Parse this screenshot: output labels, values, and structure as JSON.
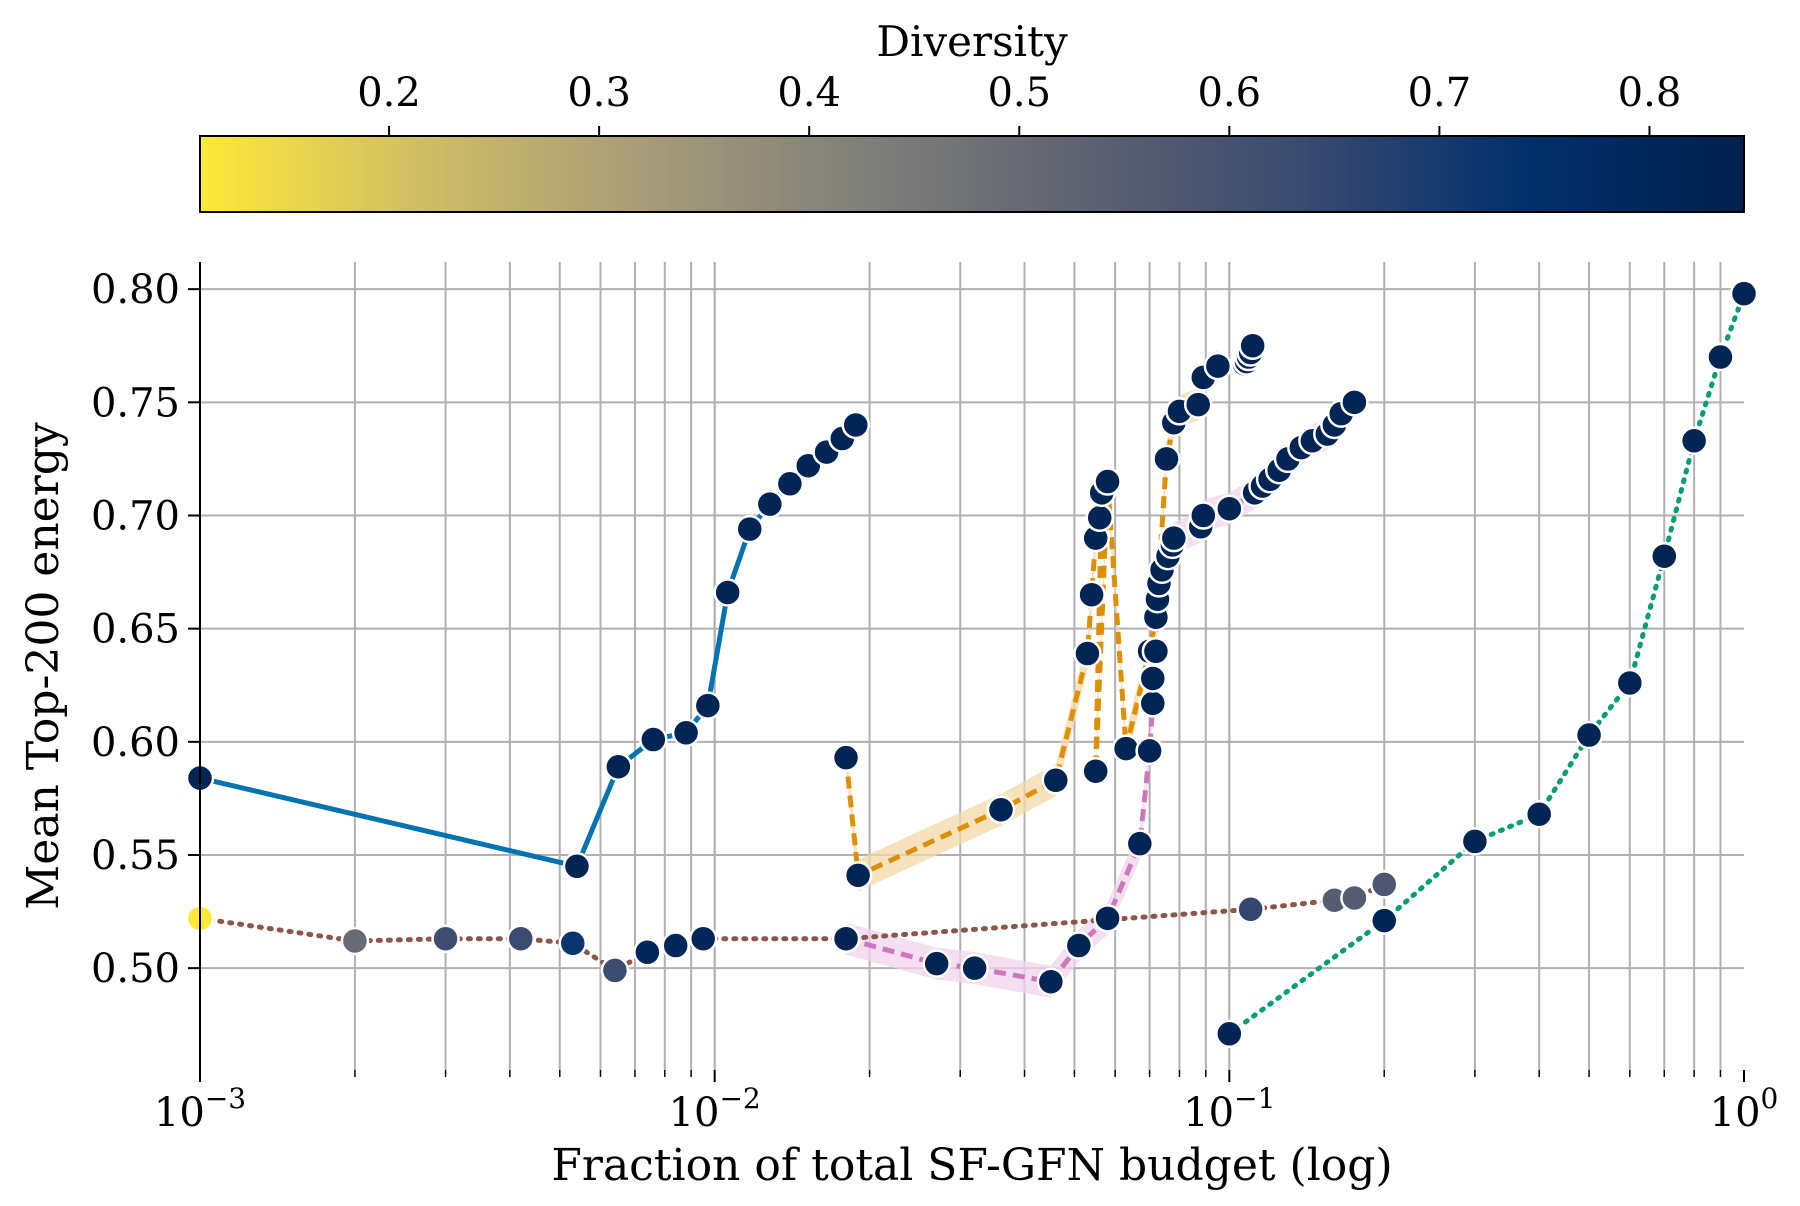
{
  "chart_data": {
    "type": "scatter",
    "title": "",
    "xlabel": "Fraction of total SF-GFN budget (log)",
    "ylabel": "Mean Top-200 energy",
    "xscale": "log",
    "xlim": [
      0.001,
      1.0
    ],
    "ylim": [
      0.455,
      0.812
    ],
    "x_major_ticks": [
      {
        "value": 0.001,
        "base": "10",
        "exp": "−3"
      },
      {
        "value": 0.01,
        "base": "10",
        "exp": "−2"
      },
      {
        "value": 0.1,
        "base": "10",
        "exp": "−1"
      },
      {
        "value": 1.0,
        "base": "10",
        "exp": "0"
      }
    ],
    "yticks": [
      {
        "value": 0.5,
        "label": "0.50"
      },
      {
        "value": 0.55,
        "label": "0.55"
      },
      {
        "value": 0.6,
        "label": "0.60"
      },
      {
        "value": 0.65,
        "label": "0.65"
      },
      {
        "value": 0.7,
        "label": "0.70"
      },
      {
        "value": 0.75,
        "label": "0.75"
      },
      {
        "value": 0.8,
        "label": "0.80"
      }
    ],
    "grid": true,
    "colorbar": {
      "label": "Diversity",
      "range": [
        0.11,
        0.845
      ],
      "colormap": "cividis_r",
      "stops": [
        "#fee838",
        "#cfbe65",
        "#a89c79",
        "#80807a",
        "#5e6271",
        "#3a4a70",
        "#02306c",
        "#00204c"
      ],
      "ticks": [
        {
          "value": 0.2,
          "label": "0.2"
        },
        {
          "value": 0.3,
          "label": "0.3"
        },
        {
          "value": 0.4,
          "label": "0.4"
        },
        {
          "value": 0.5,
          "label": "0.5"
        },
        {
          "value": 0.6,
          "label": "0.6"
        },
        {
          "value": 0.7,
          "label": "0.7"
        },
        {
          "value": 0.8,
          "label": "0.8"
        }
      ]
    },
    "series": [
      {
        "name": "brown-dotted",
        "color": "#8c564b",
        "dash": "dotted",
        "x": [
          0.001,
          0.002,
          0.003,
          0.0042,
          0.0053,
          0.0064,
          0.0074,
          0.0084,
          0.0095,
          0.018,
          0.11,
          0.16,
          0.175,
          0.2
        ],
        "y": [
          0.522,
          0.512,
          0.513,
          0.513,
          0.511,
          0.499,
          0.507,
          0.51,
          0.513,
          0.513,
          0.526,
          0.53,
          0.531,
          0.537
        ],
        "diversity": [
          0.11,
          0.5,
          0.62,
          0.63,
          0.72,
          0.63,
          0.8,
          0.8,
          0.8,
          0.82,
          0.65,
          0.55,
          0.55,
          0.58
        ]
      },
      {
        "name": "blue-solid",
        "color": "#0173b2",
        "dash": "solid",
        "x": [
          0.001,
          0.0054,
          0.0065,
          0.0076,
          0.0088,
          0.0097,
          0.0106,
          0.0117,
          0.0128,
          0.014,
          0.0152,
          0.0165,
          0.0177,
          0.0188
        ],
        "y": [
          0.584,
          0.545,
          0.589,
          0.601,
          0.604,
          0.616,
          0.666,
          0.694,
          0.705,
          0.714,
          0.722,
          0.728,
          0.734,
          0.74
        ],
        "diversity": [
          0.82,
          0.82,
          0.82,
          0.82,
          0.82,
          0.82,
          0.82,
          0.82,
          0.82,
          0.82,
          0.82,
          0.82,
          0.82,
          0.82
        ]
      },
      {
        "name": "orange-dashed",
        "color": "#de8f05",
        "dash": "dashed",
        "band": "#f3d9a8",
        "x": [
          0.018,
          0.019,
          0.036,
          0.046,
          0.053,
          0.054,
          0.055,
          0.056,
          0.0565,
          0.055,
          0.058,
          0.063,
          0.07,
          0.072,
          0.0755,
          0.078,
          0.08,
          0.087,
          0.089,
          0.095
        ],
        "y": [
          0.593,
          0.541,
          0.57,
          0.583,
          0.639,
          0.665,
          0.69,
          0.699,
          0.71,
          0.587,
          0.715,
          0.597,
          0.64,
          0.655,
          0.725,
          0.741,
          0.746,
          0.749,
          0.761,
          0.766
        ],
        "diversity": [
          0.82,
          0.82,
          0.82,
          0.82,
          0.82,
          0.82,
          0.82,
          0.82,
          0.82,
          0.82,
          0.82,
          0.82,
          0.82,
          0.82,
          0.82,
          0.82,
          0.82,
          0.82,
          0.82,
          0.82
        ]
      },
      {
        "name": "orange-tail",
        "color": "#de8f05",
        "dash": "dashed",
        "x": [
          0.107,
          0.108,
          0.109,
          0.11,
          0.111
        ],
        "y": [
          0.767,
          0.768,
          0.77,
          0.772,
          0.775
        ],
        "diversity": [
          0.82,
          0.82,
          0.82,
          0.82,
          0.82
        ]
      },
      {
        "name": "pink-dashed",
        "color": "#cc78bc",
        "dash": "dashed",
        "band": "#f0d4ec",
        "x": [
          0.018,
          0.027,
          0.032,
          0.045,
          0.051,
          0.058,
          0.067,
          0.07,
          0.071,
          0.071,
          0.072,
          0.0725,
          0.073,
          0.074,
          0.076,
          0.0775,
          0.078,
          0.088,
          0.089,
          0.1,
          0.112,
          0.116,
          0.12,
          0.125,
          0.13,
          0.138,
          0.145,
          0.155,
          0.16,
          0.165,
          0.175
        ],
        "y": [
          0.513,
          0.502,
          0.5,
          0.494,
          0.51,
          0.522,
          0.555,
          0.596,
          0.617,
          0.628,
          0.64,
          0.663,
          0.67,
          0.676,
          0.682,
          0.687,
          0.69,
          0.695,
          0.7,
          0.703,
          0.71,
          0.713,
          0.716,
          0.72,
          0.725,
          0.73,
          0.733,
          0.736,
          0.74,
          0.745,
          0.75
        ],
        "diversity": [
          0.82,
          0.82,
          0.82,
          0.82,
          0.82,
          0.82,
          0.82,
          0.82,
          0.82,
          0.82,
          0.82,
          0.82,
          0.82,
          0.82,
          0.82,
          0.82,
          0.82,
          0.82,
          0.82,
          0.82,
          0.82,
          0.82,
          0.82,
          0.82,
          0.82,
          0.82,
          0.82,
          0.82,
          0.82,
          0.82,
          0.82
        ]
      },
      {
        "name": "green-dotted",
        "color": "#029e73",
        "dash": "dotted",
        "x": [
          0.1,
          0.2,
          0.3,
          0.4,
          0.5,
          0.6,
          0.7,
          0.8,
          0.9,
          1.0
        ],
        "y": [
          0.471,
          0.521,
          0.556,
          0.568,
          0.603,
          0.626,
          0.682,
          0.733,
          0.77,
          0.798
        ],
        "diversity": [
          0.82,
          0.82,
          0.82,
          0.82,
          0.82,
          0.82,
          0.82,
          0.82,
          0.82,
          0.82
        ]
      }
    ]
  }
}
